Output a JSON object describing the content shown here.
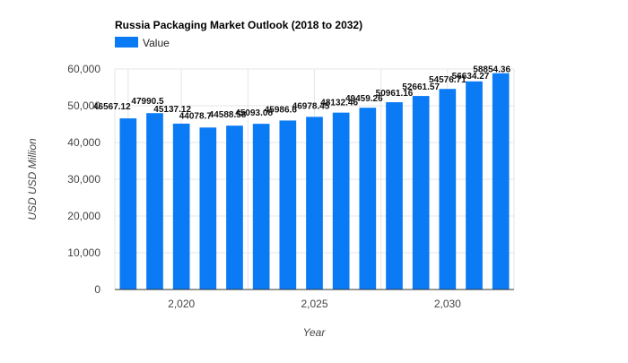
{
  "chart_data": {
    "type": "bar",
    "title": "Russia Packaging Market Outlook (2018 to 2032)",
    "xlabel": "Year",
    "ylabel": "USD USD Million",
    "legend": {
      "entries": [
        "Value"
      ],
      "placement": "top-left"
    },
    "colors": {
      "bar": "#0a7bf5",
      "grid": "#e6e6e6",
      "axis": "#333333"
    },
    "x": [
      2018,
      2019,
      2020,
      2021,
      2022,
      2023,
      2024,
      2025,
      2026,
      2027,
      2028,
      2029,
      2030,
      2031,
      2032
    ],
    "series": [
      {
        "name": "Value",
        "values": [
          46567.12,
          47990.5,
          45137.12,
          44078.7,
          44588.58,
          45093.08,
          45986.6,
          46978.45,
          48132.46,
          49459.26,
          50961.16,
          52661.57,
          54576.71,
          56634.27,
          58854.36
        ],
        "labels": [
          "46567.12",
          "47990.5",
          "45137.12",
          "44078.7",
          "44588.58",
          "45093.08",
          "45986.6",
          "46978.45",
          "48132.46",
          "49459.26",
          "50961.16",
          "52661.57",
          "54576.71",
          "56634.27",
          "58854.36"
        ]
      }
    ],
    "ylim": [
      0,
      60000
    ],
    "y_ticks": [
      0,
      10000,
      20000,
      30000,
      40000,
      50000,
      60000
    ],
    "y_tick_labels": [
      "0",
      "10,000",
      "20,000",
      "30,000",
      "40,000",
      "50,000",
      "60,000"
    ],
    "x_ticks": [
      2020,
      2025,
      2030
    ],
    "x_tick_labels": [
      "2,020",
      "2,025",
      "2,030"
    ],
    "grid": true
  }
}
